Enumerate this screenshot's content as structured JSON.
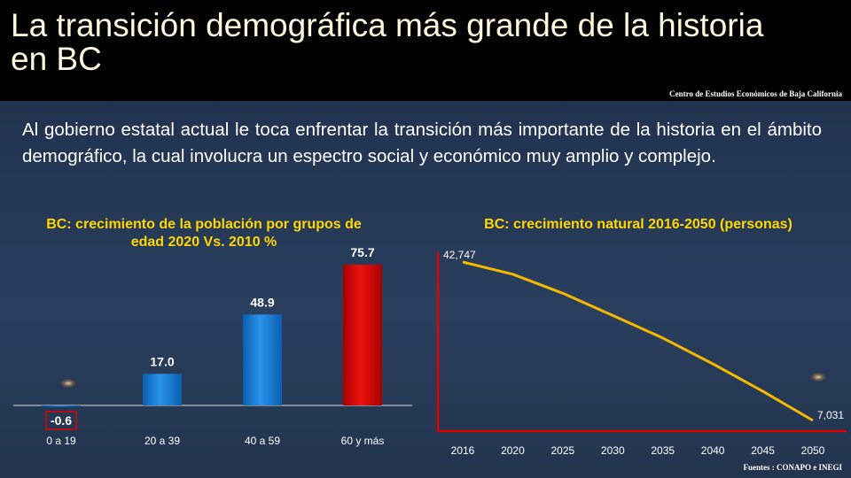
{
  "header": {
    "title": "La transición demográfica más grande de la historia en BC",
    "source": "Centro de Estudios Económicos de Baja California"
  },
  "intro": "Al gobierno estatal actual le toca enfrentar la transición más importante de la historia en el ámbito demográfico, la cual involucra un espectro social y económico muy amplio y complejo.",
  "footer": {
    "sources": "Fuentes : CONAPO e INEGI"
  },
  "colors": {
    "title_text": "#fff8dc",
    "chart_title": "#ffd700",
    "bar_blue": "#1a7fd6",
    "bar_red": "#d40000",
    "line": "#f5b800",
    "axis_red": "#e00000"
  },
  "chart_data": [
    {
      "type": "bar",
      "title": "BC: crecimiento de la población por grupos de edad 2020 Vs. 2010 %",
      "categories": [
        "0 a 19",
        "20 a 39",
        "40 a 59",
        "60 y más"
      ],
      "values": [
        -0.6,
        17.0,
        48.9,
        75.7
      ],
      "value_labels": [
        "-0.6",
        "17.0",
        "48.9",
        "75.7"
      ],
      "bar_colors": [
        "#1a7fd6",
        "#1a7fd6",
        "#1a7fd6",
        "#d40000"
      ],
      "highlight_negative_label": true,
      "ylim": [
        -5,
        80
      ],
      "grid": false,
      "xlabel": "",
      "ylabel": ""
    },
    {
      "type": "line",
      "title": "BC: crecimiento natural 2016-2050 (personas)",
      "x": [
        2016,
        2020,
        2025,
        2030,
        2035,
        2040,
        2045,
        2050
      ],
      "x_tick_labels": [
        "2016",
        "2020",
        "2025",
        "2030",
        "2035",
        "2040",
        "2045",
        "2050"
      ],
      "values": [
        42747,
        40000,
        35700,
        30700,
        25600,
        19800,
        13600,
        7031
      ],
      "point_labels": {
        "first": "42,747",
        "last": "7,031"
      },
      "ylim": [
        0,
        45000
      ],
      "grid": false,
      "xlabel": "",
      "ylabel": ""
    }
  ]
}
